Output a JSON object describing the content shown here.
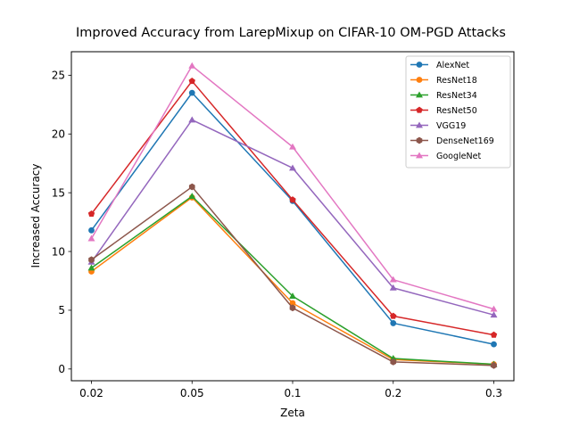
{
  "chart_data": {
    "type": "line",
    "title": "Improved Accuracy from LarepMixup on CIFAR-10 OM-PGD Attacks",
    "xlabel": "Zeta",
    "ylabel": "Increased Accuracy",
    "categories": [
      "0.02",
      "0.05",
      "0.1",
      "0.2",
      "0.3"
    ],
    "ylim": [
      -1,
      27
    ],
    "yticks": [
      0,
      5,
      10,
      15,
      20,
      25
    ],
    "grid": false,
    "legend_position": "top-right",
    "series": [
      {
        "name": "AlexNet",
        "color": "#1f77b4",
        "marker": "circle",
        "values": [
          11.8,
          23.5,
          14.3,
          3.9,
          2.1
        ]
      },
      {
        "name": "ResNet18",
        "color": "#ff7f0e",
        "marker": "circle",
        "values": [
          8.3,
          14.6,
          5.6,
          0.8,
          0.4
        ]
      },
      {
        "name": "ResNet34",
        "color": "#2ca02c",
        "marker": "triangle-up",
        "values": [
          8.6,
          14.7,
          6.2,
          0.9,
          0.4
        ]
      },
      {
        "name": "ResNet50",
        "color": "#d62728",
        "marker": "pentagon",
        "values": [
          13.2,
          24.5,
          14.4,
          4.5,
          2.9
        ]
      },
      {
        "name": "VGG19",
        "color": "#9467bd",
        "marker": "triangle-up",
        "values": [
          9.1,
          21.2,
          17.1,
          6.9,
          4.6
        ]
      },
      {
        "name": "DenseNet169",
        "color": "#8c564b",
        "marker": "hexagon",
        "values": [
          9.3,
          15.5,
          5.2,
          0.6,
          0.3
        ]
      },
      {
        "name": "GoogleNet",
        "color": "#e377c2",
        "marker": "triangle-up",
        "values": [
          11.1,
          25.8,
          18.9,
          7.6,
          5.1
        ]
      }
    ]
  }
}
